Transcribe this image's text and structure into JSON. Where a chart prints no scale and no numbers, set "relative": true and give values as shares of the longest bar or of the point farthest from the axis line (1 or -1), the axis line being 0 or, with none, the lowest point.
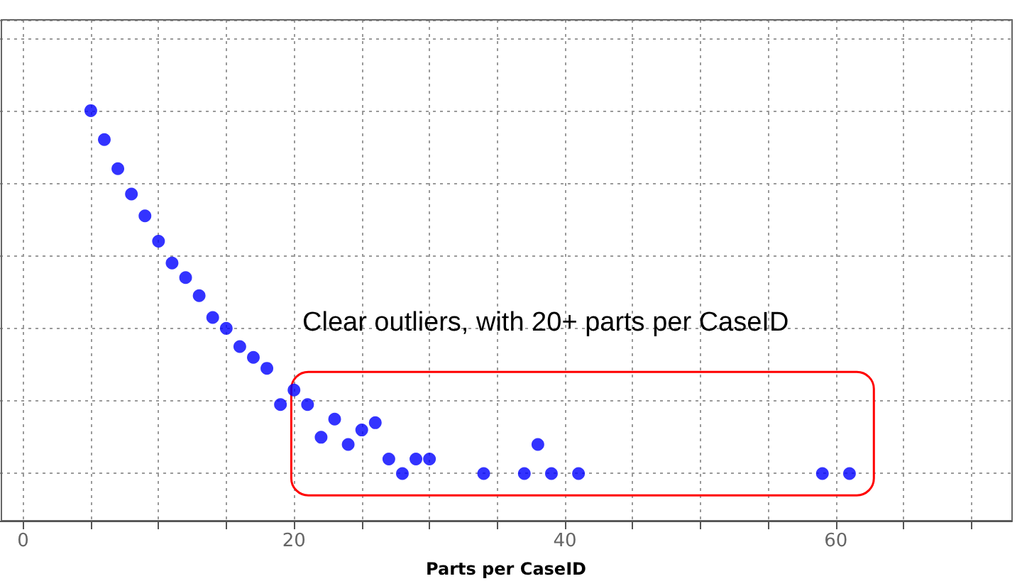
{
  "chart_data": {
    "type": "scatter",
    "relative": true,
    "xlabel": "Parts per CaseID",
    "annotations": [
      "Clear outliers, with 20+ parts per CaseID"
    ],
    "x": [
      5,
      6,
      7,
      8,
      9,
      10,
      11,
      12,
      13,
      14,
      15,
      16,
      17,
      18,
      19,
      20,
      21,
      22,
      23,
      24,
      25,
      26,
      27,
      28,
      29,
      30,
      34,
      37,
      38,
      39,
      41,
      59,
      61
    ],
    "series": [
      {
        "color": "#0000ff",
        "values": [
          1,
          0.92,
          0.84,
          0.77,
          0.71,
          0.64,
          0.58,
          0.54,
          0.49,
          0.43,
          0.4,
          0.35,
          0.32,
          0.29,
          0.19,
          0.23,
          0.19,
          0.1,
          0.15,
          0.08,
          0.12,
          0.14,
          0.04,
          0,
          0.04,
          0.04,
          0,
          0,
          0.08,
          0,
          0,
          0,
          0
        ]
      }
    ],
    "xlim": [
      -1.7,
      73
    ],
    "xticks": [
      0,
      {
        "value": 5,
        "label": null
      },
      {
        "value": 10,
        "label": null
      },
      {
        "value": 15,
        "label": null
      },
      20,
      {
        "value": 25,
        "label": null
      },
      {
        "value": 30,
        "label": null
      },
      {
        "value": 35,
        "label": null
      },
      40,
      {
        "value": 45,
        "label": null
      },
      {
        "value": 50,
        "label": null
      },
      {
        "value": 55,
        "label": null
      },
      60,
      {
        "value": 65,
        "label": null
      },
      {
        "value": 70,
        "label": null
      }
    ],
    "grid": true,
    "marker": "circle"
  }
}
